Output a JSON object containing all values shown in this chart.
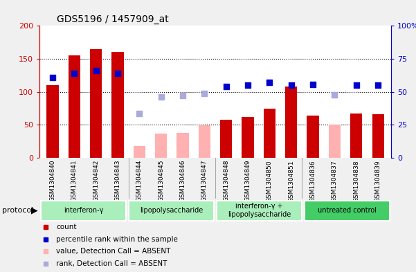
{
  "title": "GDS5196 / 1457909_at",
  "samples": [
    "GSM1304840",
    "GSM1304841",
    "GSM1304842",
    "GSM1304843",
    "GSM1304844",
    "GSM1304845",
    "GSM1304846",
    "GSM1304847",
    "GSM1304848",
    "GSM1304849",
    "GSM1304850",
    "GSM1304851",
    "GSM1304836",
    "GSM1304837",
    "GSM1304838",
    "GSM1304839"
  ],
  "count_present": [
    110,
    155,
    165,
    160,
    null,
    null,
    null,
    null,
    58,
    62,
    74,
    108,
    64,
    null,
    67,
    66
  ],
  "count_absent": [
    null,
    null,
    null,
    null,
    18,
    37,
    38,
    49,
    null,
    null,
    null,
    null,
    null,
    50,
    null,
    null
  ],
  "rank_present_pct": [
    61,
    64,
    66,
    64,
    null,
    null,
    null,
    null,
    54,
    55,
    57,
    55,
    55.5,
    null,
    55,
    55
  ],
  "rank_absent_pct": [
    null,
    null,
    null,
    null,
    33.5,
    46,
    47,
    49,
    null,
    null,
    null,
    null,
    null,
    47.5,
    null,
    null
  ],
  "protocols": [
    {
      "label": "interferon-γ",
      "start": 0,
      "end": 4,
      "color": "#AAEEBB"
    },
    {
      "label": "lipopolysaccharide",
      "start": 4,
      "end": 8,
      "color": "#AAEEBB"
    },
    {
      "label": "interferon-γ +\nlipopolysaccharide",
      "start": 8,
      "end": 12,
      "color": "#AAEEBB"
    },
    {
      "label": "untreated control",
      "start": 12,
      "end": 16,
      "color": "#44CC66"
    }
  ],
  "bar_color_present": "#CC0000",
  "bar_color_absent": "#FFB0B0",
  "dot_color_present": "#0000CC",
  "dot_color_absent": "#AAAADD",
  "ylim_left": [
    0,
    200
  ],
  "ylim_right": [
    0,
    100
  ],
  "yticks_left": [
    0,
    50,
    100,
    150,
    200
  ],
  "yticks_right": [
    0,
    25,
    50,
    75,
    100
  ],
  "ytick_labels_left": [
    "0",
    "50",
    "100",
    "150",
    "200"
  ],
  "ytick_labels_right": [
    "0",
    "25",
    "50",
    "75",
    "100%"
  ],
  "bg_color": "#F0F0F0",
  "plot_bg": "#FFFFFF",
  "left_axis_color": "#CC0000",
  "right_axis_color": "#0000CC",
  "dot_size": 40,
  "bar_width": 0.55
}
